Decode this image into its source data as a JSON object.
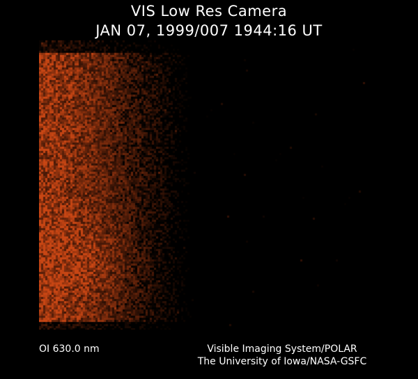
{
  "title": "VIS Low Res Camera",
  "timestamp": "JAN 07, 1999/007 1944:16 UT",
  "filter": "OI  630.0 nm",
  "credit_line1": "Visible Imaging System/POLAR",
  "credit_line2": "The University of Iowa/NASA-GSFC",
  "colors": {
    "background": "#000000",
    "emission": "#c04010",
    "text": "#ffffff"
  }
}
